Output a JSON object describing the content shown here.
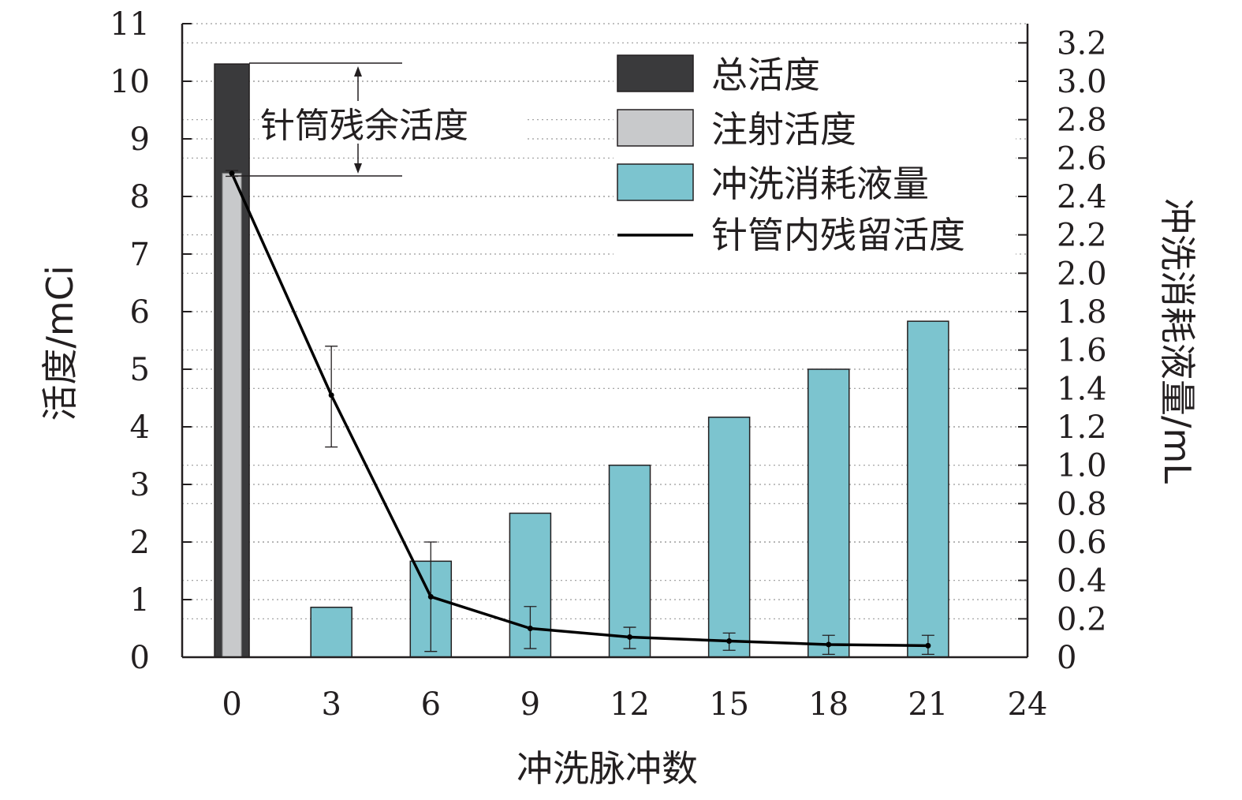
{
  "chart_data": {
    "type": "bar",
    "x_label": "冲洗脉冲数",
    "y_left_label": "活度/mCi",
    "y_right_label": "冲洗消耗液量/mL",
    "x_ticks": [
      "0",
      "3",
      "6",
      "9",
      "12",
      "15",
      "18",
      "21",
      "24"
    ],
    "y_left_ticks": [
      "0",
      "1",
      "2",
      "3",
      "4",
      "5",
      "6",
      "7",
      "8",
      "9",
      "10",
      "11"
    ],
    "y_right_ticks": [
      "0",
      "0.2",
      "0.4",
      "0.6",
      "0.8",
      "1.0",
      "1.2",
      "1.4",
      "1.6",
      "1.8",
      "2.0",
      "2.2",
      "2.4",
      "2.6",
      "2.8",
      "3.0",
      "3.2"
    ],
    "x_range": [
      -1.5,
      24
    ],
    "y_left_range": [
      0,
      11
    ],
    "y_right_range": [
      0,
      3.3
    ],
    "grid": "horizontal dotted",
    "legend_position": "top-right",
    "legend": [
      {
        "label": "总活度",
        "kind": "bar",
        "color": "#3a3a3c"
      },
      {
        "label": "注射活度",
        "kind": "bar",
        "color": "#c8c9cb"
      },
      {
        "label": "冲洗消耗液量",
        "kind": "bar",
        "color": "#7cc4cf"
      },
      {
        "label": "针管内残留活度",
        "kind": "line",
        "color": "#000000"
      }
    ],
    "annotation": "针筒残余活度",
    "total_activity": {
      "x": 0,
      "value": 10.3
    },
    "injected_activity": {
      "x": 0,
      "value": 8.4
    },
    "flush_volume": {
      "x": [
        3,
        6,
        9,
        12,
        15,
        18,
        21
      ],
      "values": [
        0.26,
        0.5,
        0.75,
        1.0,
        1.25,
        1.5,
        1.75
      ]
    },
    "residual_activity": {
      "x": [
        0,
        3,
        6,
        9,
        12,
        15,
        18,
        21
      ],
      "values": [
        8.4,
        4.55,
        1.05,
        0.5,
        0.35,
        0.28,
        0.22,
        0.2
      ],
      "error_low": [
        8.35,
        3.65,
        0.1,
        0.15,
        0.15,
        0.12,
        0.05,
        0.05
      ],
      "error_high": [
        8.45,
        5.4,
        2.0,
        0.88,
        0.52,
        0.42,
        0.38,
        0.38
      ]
    }
  }
}
